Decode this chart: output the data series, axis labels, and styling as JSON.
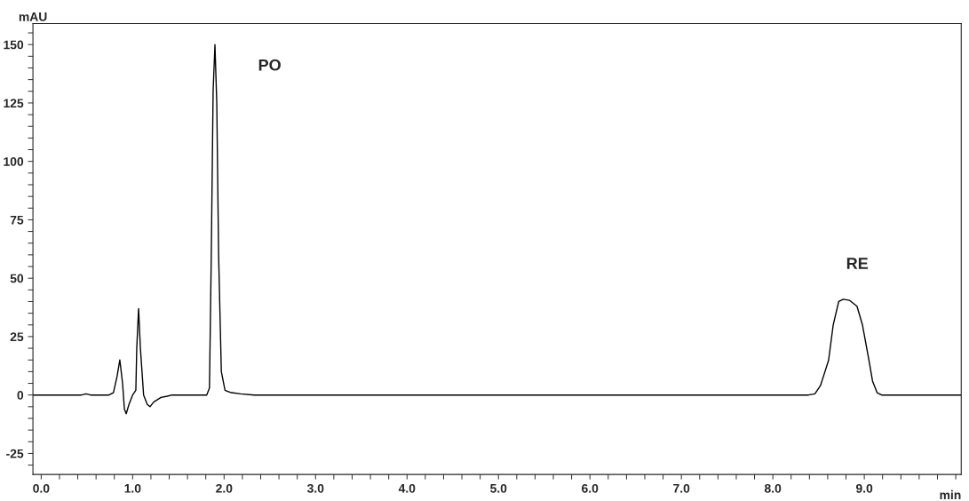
{
  "chart_data": {
    "type": "line",
    "xlabel": "min",
    "ylabel": "mAU",
    "series": [
      {
        "color": "#000000",
        "x": [
          -0.09,
          0.44,
          0.49,
          0.54,
          0.74,
          0.79,
          0.83,
          0.86,
          0.89,
          0.91,
          0.93,
          0.96,
          1.0,
          1.035,
          1.045,
          1.065,
          1.085,
          1.12,
          1.16,
          1.19,
          1.23,
          1.31,
          1.38,
          1.43,
          1.81,
          1.84,
          1.86,
          1.88,
          1.9,
          1.92,
          1.94,
          1.97,
          2.01,
          2.08,
          2.18,
          2.33,
          8.39,
          8.46,
          8.52,
          8.57,
          8.61,
          8.66,
          8.72,
          8.77,
          8.84,
          8.92,
          8.98,
          9.05,
          9.09,
          9.14,
          9.19,
          10.06
        ],
        "values": [
          0,
          0,
          0.5,
          0,
          0,
          1,
          8,
          15,
          5,
          -6,
          -8,
          -4,
          0,
          2,
          20,
          37,
          20,
          0,
          -4,
          -5,
          -3,
          -1,
          -0.5,
          0,
          0,
          3,
          60,
          130,
          150,
          125,
          60,
          10,
          2,
          1,
          0.5,
          0,
          0,
          0.5,
          4,
          10,
          15,
          30,
          40,
          41,
          40.5,
          38,
          30,
          15,
          6,
          1,
          0,
          0
        ]
      }
    ],
    "annotations": [
      "PO",
      "RE"
    ],
    "xlim": [
      -0.09,
      10.06
    ],
    "ylim": [
      -34,
      159
    ],
    "xticks": [
      {
        "value": 0,
        "label": "0.0"
      },
      {
        "value": 0.2,
        "label": null
      },
      {
        "value": 0.4,
        "label": null
      },
      {
        "value": 0.6,
        "label": null
      },
      {
        "value": 0.8,
        "label": null
      },
      {
        "value": 1,
        "label": "1.0"
      },
      {
        "value": 1.2,
        "label": null
      },
      {
        "value": 1.4,
        "label": null
      },
      {
        "value": 1.6,
        "label": null
      },
      {
        "value": 1.8,
        "label": null
      },
      {
        "value": 2,
        "label": "2.0"
      },
      {
        "value": 2.2,
        "label": null
      },
      {
        "value": 2.4,
        "label": null
      },
      {
        "value": 2.6,
        "label": null
      },
      {
        "value": 2.8,
        "label": null
      },
      {
        "value": 3,
        "label": "3.0"
      },
      {
        "value": 3.2,
        "label": null
      },
      {
        "value": 3.4,
        "label": null
      },
      {
        "value": 3.6,
        "label": null
      },
      {
        "value": 3.8,
        "label": null
      },
      {
        "value": 4,
        "label": "4.0"
      },
      {
        "value": 4.2,
        "label": null
      },
      {
        "value": 4.4,
        "label": null
      },
      {
        "value": 4.6,
        "label": null
      },
      {
        "value": 4.8,
        "label": null
      },
      {
        "value": 5,
        "label": "5.0"
      },
      {
        "value": 5.2,
        "label": null
      },
      {
        "value": 5.4,
        "label": null
      },
      {
        "value": 5.6,
        "label": null
      },
      {
        "value": 5.8,
        "label": null
      },
      {
        "value": 6,
        "label": "6.0"
      },
      {
        "value": 6.2,
        "label": null
      },
      {
        "value": 6.4,
        "label": null
      },
      {
        "value": 6.6,
        "label": null
      },
      {
        "value": 6.8,
        "label": null
      },
      {
        "value": 7,
        "label": "7.0"
      },
      {
        "value": 7.2,
        "label": null
      },
      {
        "value": 7.4,
        "label": null
      },
      {
        "value": 7.6,
        "label": null
      },
      {
        "value": 7.8,
        "label": null
      },
      {
        "value": 8,
        "label": "8.0"
      },
      {
        "value": 8.2,
        "label": null
      },
      {
        "value": 8.4,
        "label": null
      },
      {
        "value": 8.6,
        "label": null
      },
      {
        "value": 8.8,
        "label": null
      },
      {
        "value": 9,
        "label": "9.0"
      },
      {
        "value": 9.2,
        "label": null
      },
      {
        "value": 9.4,
        "label": null
      },
      {
        "value": 9.6,
        "label": null
      },
      {
        "value": 9.8,
        "label": null
      },
      {
        "value": 10,
        "label": null
      }
    ],
    "yticks": [
      {
        "value": -30,
        "label": null
      },
      -25,
      {
        "value": -20,
        "label": null
      },
      {
        "value": -15,
        "label": null
      },
      {
        "value": -10,
        "label": null
      },
      {
        "value": -5,
        "label": null
      },
      0,
      {
        "value": 5,
        "label": null
      },
      {
        "value": 10,
        "label": null
      },
      {
        "value": 15,
        "label": null
      },
      {
        "value": 20,
        "label": null
      },
      25,
      {
        "value": 30,
        "label": null
      },
      {
        "value": 35,
        "label": null
      },
      {
        "value": 40,
        "label": null
      },
      {
        "value": 45,
        "label": null
      },
      50,
      {
        "value": 55,
        "label": null
      },
      {
        "value": 60,
        "label": null
      },
      {
        "value": 65,
        "label": null
      },
      {
        "value": 70,
        "label": null
      },
      75,
      {
        "value": 80,
        "label": null
      },
      {
        "value": 85,
        "label": null
      },
      {
        "value": 90,
        "label": null
      },
      {
        "value": 95,
        "label": null
      },
      100,
      {
        "value": 105,
        "label": null
      },
      {
        "value": 110,
        "label": null
      },
      {
        "value": 115,
        "label": null
      },
      {
        "value": 120,
        "label": null
      },
      125,
      {
        "value": 130,
        "label": null
      },
      {
        "value": 135,
        "label": null
      },
      {
        "value": 140,
        "label": null
      },
      {
        "value": 145,
        "label": null
      },
      150,
      {
        "value": 155,
        "label": null
      }
    ]
  }
}
